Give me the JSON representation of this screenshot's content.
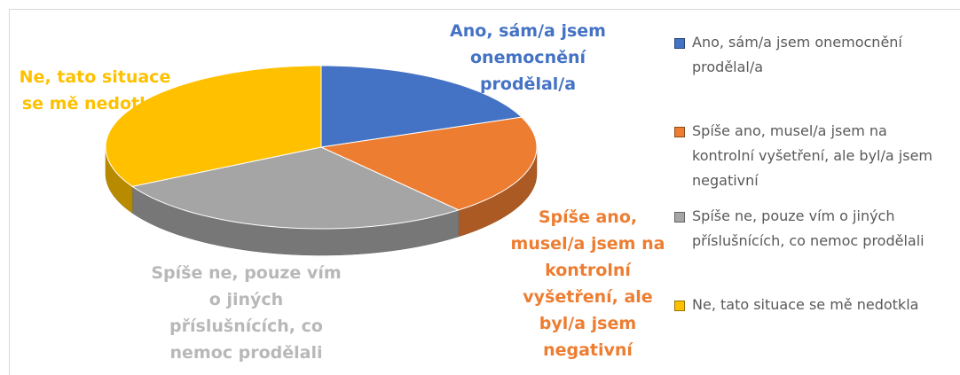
{
  "chart_data": {
    "type": "pie",
    "categories": [
      "Ano, sám/a jsem onemocnění prodělal/a",
      "Spíše ano, musel/a jsem na kontrolní vyšetření, ale byl/a jsem negativní",
      "Spíše ne, pouze vím o jiných příslušnících, co nemoc prodělali",
      "Ne, tato situace se mě nedotkla"
    ],
    "values": [
      19,
      20,
      28,
      33
    ],
    "colors": [
      "#4472c4",
      "#ed7d31",
      "#a5a5a5",
      "#ffc000"
    ],
    "legend": "right"
  }
}
